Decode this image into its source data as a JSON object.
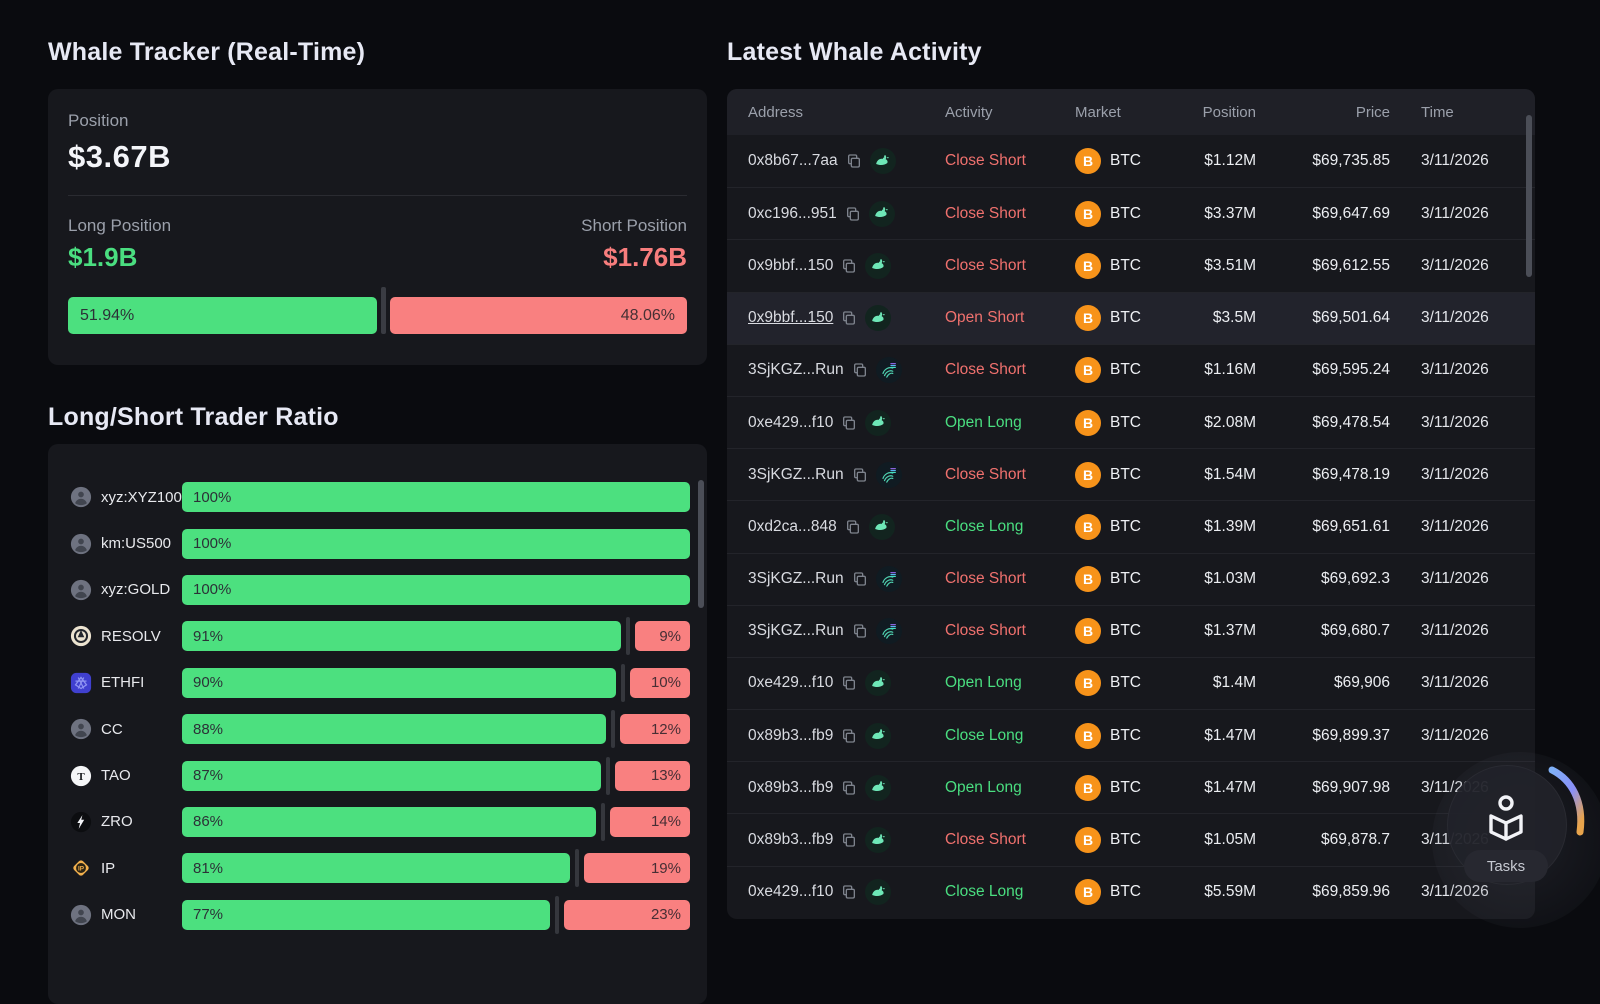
{
  "colors": {
    "green": "#4ce07f",
    "red": "#f98080",
    "btc_orange": "#f7931a"
  },
  "whale_tracker": {
    "title": "Whale Tracker (Real-Time)",
    "position_label": "Position",
    "position_value": "$3.67B",
    "long_label": "Long Position",
    "long_value": "$1.9B",
    "short_label": "Short Position",
    "short_value": "$1.76B",
    "long_pct": 51.94,
    "short_pct": 48.06,
    "long_pct_label": "51.94%",
    "short_pct_label": "48.06%"
  },
  "ratio": {
    "title": "Long/Short Trader Ratio",
    "rows": [
      {
        "symbol": "xyz:XYZ100",
        "icon": "avatar",
        "long": 100,
        "short": 0,
        "long_label": "100%",
        "short_label": ""
      },
      {
        "symbol": "km:US500",
        "icon": "avatar",
        "long": 100,
        "short": 0,
        "long_label": "100%",
        "short_label": ""
      },
      {
        "symbol": "xyz:GOLD",
        "icon": "avatar",
        "long": 100,
        "short": 0,
        "long_label": "100%",
        "short_label": ""
      },
      {
        "symbol": "RESOLV",
        "icon": "resolv",
        "long": 91,
        "short": 9,
        "long_label": "91%",
        "short_label": "9%"
      },
      {
        "symbol": "ETHFI",
        "icon": "ethfi",
        "long": 90,
        "short": 10,
        "long_label": "90%",
        "short_label": "10%"
      },
      {
        "symbol": "CC",
        "icon": "avatar",
        "long": 88,
        "short": 12,
        "long_label": "88%",
        "short_label": "12%"
      },
      {
        "symbol": "TAO",
        "icon": "tao",
        "long": 87,
        "short": 13,
        "long_label": "87%",
        "short_label": "13%"
      },
      {
        "symbol": "ZRO",
        "icon": "zro",
        "long": 86,
        "short": 14,
        "long_label": "86%",
        "short_label": "14%"
      },
      {
        "symbol": "IP",
        "icon": "ip",
        "long": 81,
        "short": 19,
        "long_label": "81%",
        "short_label": "19%"
      },
      {
        "symbol": "MON",
        "icon": "avatar",
        "long": 77,
        "short": 23,
        "long_label": "77%",
        "short_label": "23%"
      }
    ]
  },
  "activity": {
    "title": "Latest Whale Activity",
    "columns": [
      "Address",
      "Activity",
      "Market",
      "Position",
      "Price",
      "Time"
    ],
    "rows": [
      {
        "address": "0x8b67...7aa",
        "chain": "evm",
        "activity": "Close Short",
        "side": "short",
        "market": "BTC",
        "position": "$1.12M",
        "price": "$69,735.85",
        "time": "3/11/2026",
        "highlighted": false
      },
      {
        "address": "0xc196...951",
        "chain": "evm",
        "activity": "Close Short",
        "side": "short",
        "market": "BTC",
        "position": "$3.37M",
        "price": "$69,647.69",
        "time": "3/11/2026",
        "highlighted": false
      },
      {
        "address": "0x9bbf...150",
        "chain": "evm",
        "activity": "Close Short",
        "side": "short",
        "market": "BTC",
        "position": "$3.51M",
        "price": "$69,612.55",
        "time": "3/11/2026",
        "highlighted": false
      },
      {
        "address": "0x9bbf...150",
        "chain": "evm",
        "activity": "Open Short",
        "side": "short",
        "market": "BTC",
        "position": "$3.5M",
        "price": "$69,501.64",
        "time": "3/11/2026",
        "highlighted": true
      },
      {
        "address": "3SjKGZ...Run",
        "chain": "sol",
        "activity": "Close Short",
        "side": "short",
        "market": "BTC",
        "position": "$1.16M",
        "price": "$69,595.24",
        "time": "3/11/2026",
        "highlighted": false
      },
      {
        "address": "0xe429...f10",
        "chain": "evm",
        "activity": "Open Long",
        "side": "long",
        "market": "BTC",
        "position": "$2.08M",
        "price": "$69,478.54",
        "time": "3/11/2026",
        "highlighted": false
      },
      {
        "address": "3SjKGZ...Run",
        "chain": "sol",
        "activity": "Close Short",
        "side": "short",
        "market": "BTC",
        "position": "$1.54M",
        "price": "$69,478.19",
        "time": "3/11/2026",
        "highlighted": false
      },
      {
        "address": "0xd2ca...848",
        "chain": "evm",
        "activity": "Close Long",
        "side": "long",
        "market": "BTC",
        "position": "$1.39M",
        "price": "$69,651.61",
        "time": "3/11/2026",
        "highlighted": false
      },
      {
        "address": "3SjKGZ...Run",
        "chain": "sol",
        "activity": "Close Short",
        "side": "short",
        "market": "BTC",
        "position": "$1.03M",
        "price": "$69,692.3",
        "time": "3/11/2026",
        "highlighted": false
      },
      {
        "address": "3SjKGZ...Run",
        "chain": "sol",
        "activity": "Close Short",
        "side": "short",
        "market": "BTC",
        "position": "$1.37M",
        "price": "$69,680.7",
        "time": "3/11/2026",
        "highlighted": false
      },
      {
        "address": "0xe429...f10",
        "chain": "evm",
        "activity": "Open Long",
        "side": "long",
        "market": "BTC",
        "position": "$1.4M",
        "price": "$69,906",
        "time": "3/11/2026",
        "highlighted": false
      },
      {
        "address": "0x89b3...fb9",
        "chain": "evm",
        "activity": "Close Long",
        "side": "long",
        "market": "BTC",
        "position": "$1.47M",
        "price": "$69,899.37",
        "time": "3/11/2026",
        "highlighted": false
      },
      {
        "address": "0x89b3...fb9",
        "chain": "evm",
        "activity": "Open Long",
        "side": "long",
        "market": "BTC",
        "position": "$1.47M",
        "price": "$69,907.98",
        "time": "3/11/2026",
        "highlighted": false
      },
      {
        "address": "0x89b3...fb9",
        "chain": "evm",
        "activity": "Close Short",
        "side": "short",
        "market": "BTC",
        "position": "$1.05M",
        "price": "$69,878.7",
        "time": "3/11/2026",
        "highlighted": false
      },
      {
        "address": "0xe429...f10",
        "chain": "evm",
        "activity": "Close Long",
        "side": "long",
        "market": "BTC",
        "position": "$5.59M",
        "price": "$69,859.96",
        "time": "3/11/2026",
        "highlighted": false
      }
    ]
  },
  "tasks_button": {
    "label": "Tasks"
  }
}
